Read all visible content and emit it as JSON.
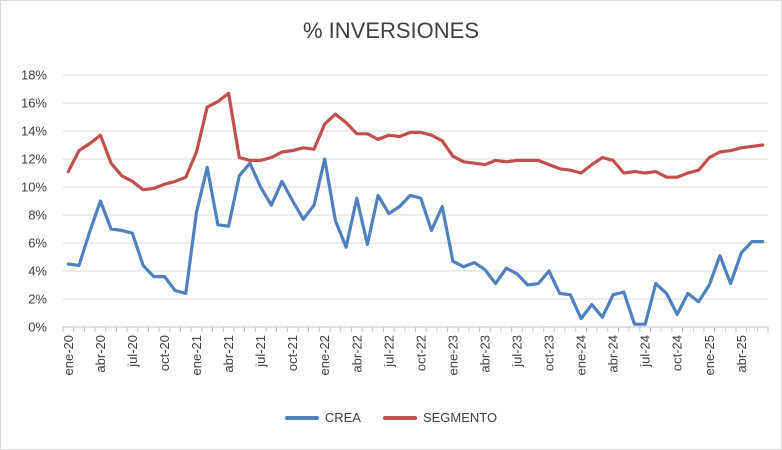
{
  "chart_data": {
    "type": "line",
    "title": "% INVERSIONES",
    "xlabel": "",
    "ylabel": "",
    "ylim": [
      0,
      0.18
    ],
    "y_ticks": [
      "0%",
      "2%",
      "4%",
      "6%",
      "8%",
      "10%",
      "12%",
      "14%",
      "16%",
      "18%"
    ],
    "x_tick_labels": [
      "ene-20",
      "abr-20",
      "jul-20",
      "oct-20",
      "ene-21",
      "abr-21",
      "jul-21",
      "oct-21",
      "ene-22",
      "abr-22",
      "jul-22",
      "oct-22",
      "ene-23",
      "abr-23",
      "jul-23",
      "oct-23",
      "ene-24",
      "abr-24",
      "jul-24",
      "oct-24",
      "ene-25",
      "abr-25"
    ],
    "x_tick_step": 3,
    "grid": "horizontal",
    "legend_position": "bottom",
    "series": [
      {
        "name": "CREA",
        "color": "#4f81bd",
        "values": [
          0.045,
          0.044,
          0.068,
          0.09,
          0.07,
          0.069,
          0.067,
          0.044,
          0.036,
          0.036,
          0.026,
          0.024,
          0.082,
          0.114,
          0.073,
          0.072,
          0.108,
          0.117,
          0.1,
          0.087,
          0.104,
          0.09,
          0.077,
          0.087,
          0.12,
          0.076,
          0.057,
          0.092,
          0.059,
          0.094,
          0.081,
          0.086,
          0.094,
          0.092,
          0.069,
          0.086,
          0.047,
          0.043,
          0.046,
          0.041,
          0.031,
          0.042,
          0.038,
          0.03,
          0.031,
          0.04,
          0.024,
          0.023,
          0.006,
          0.016,
          0.007,
          0.023,
          0.025,
          0.002,
          0.002,
          0.031,
          0.024,
          0.009,
          0.024,
          0.018,
          0.03,
          0.051,
          0.031,
          0.053,
          0.061,
          0.061
        ]
      },
      {
        "name": "SEGMENTO",
        "color": "#c0504d",
        "values": [
          0.111,
          0.126,
          0.131,
          0.137,
          0.117,
          0.108,
          0.104,
          0.098,
          0.099,
          0.102,
          0.104,
          0.107,
          0.125,
          0.157,
          0.161,
          0.167,
          0.121,
          0.119,
          0.119,
          0.121,
          0.125,
          0.126,
          0.128,
          0.127,
          0.145,
          0.152,
          0.146,
          0.138,
          0.138,
          0.134,
          0.137,
          0.136,
          0.139,
          0.139,
          0.137,
          0.133,
          0.122,
          0.118,
          0.117,
          0.116,
          0.119,
          0.118,
          0.119,
          0.119,
          0.119,
          0.116,
          0.113,
          0.112,
          0.11,
          0.116,
          0.121,
          0.119,
          0.11,
          0.111,
          0.11,
          0.111,
          0.107,
          0.107,
          0.11,
          0.112,
          0.121,
          0.125,
          0.126,
          0.128,
          0.129,
          0.13
        ]
      }
    ]
  }
}
